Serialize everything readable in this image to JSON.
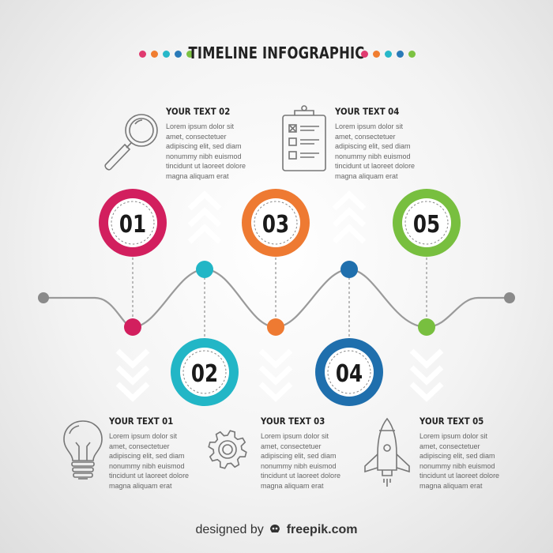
{
  "header": {
    "title": "TIMELINE INFOGRAPHIC",
    "dots_left": [
      "#e03a6f",
      "#f07d30",
      "#27b8c9",
      "#2a7ab8",
      "#7cc242"
    ],
    "dots_right": [
      "#e03a6f",
      "#f07d30",
      "#27b8c9",
      "#2a7ab8",
      "#7cc242"
    ]
  },
  "steps": [
    {
      "number": "01",
      "color": "#d21f5e",
      "icon": "lightbulb-icon",
      "heading": "YOUR TEXT 01",
      "body": "Lorem ipsum dolor sit\namet, consectetuer\nadipiscing elit, sed diam\nnonummy nibh euismod\ntincidunt ut laoreet dolore\nmagna aliquam erat"
    },
    {
      "number": "02",
      "color": "#22b6c6",
      "icon": "magnifier-icon",
      "heading": "YOUR TEXT 02",
      "body": "Lorem ipsum dolor sit\namet, consectetuer\nadipiscing elit, sed diam\nnonummy nibh euismod\ntincidunt ut laoreet dolore\nmagna aliquam erat"
    },
    {
      "number": "03",
      "color": "#ee7a32",
      "icon": "gear-icon",
      "heading": "YOUR TEXT 03",
      "body": "Lorem ipsum dolor sit\namet, consectetuer\nadipiscing elit, sed diam\nnonummy nibh euismod\ntincidunt ut laoreet dolore\nmagna aliquam erat"
    },
    {
      "number": "04",
      "color": "#1f6fad",
      "icon": "clipboard-icon",
      "heading": "YOUR TEXT 04",
      "body": "Lorem ipsum dolor sit\namet, consectetuer\nadipiscing elit, sed diam\nnonummy nibh euismod\ntincidunt ut laoreet dolore\nmagna aliquam erat"
    },
    {
      "number": "05",
      "color": "#78bf3f",
      "icon": "rocket-icon",
      "heading": "YOUR TEXT 05",
      "body": "Lorem ipsum dolor sit\namet, consectetuer\nadipiscing elit, sed diam\nnonummy nibh euismod\ntincidunt ut laoreet dolore\nmagna aliquam erat"
    }
  ],
  "footer": {
    "prefix": "designed by",
    "brand": "freepik.com"
  }
}
